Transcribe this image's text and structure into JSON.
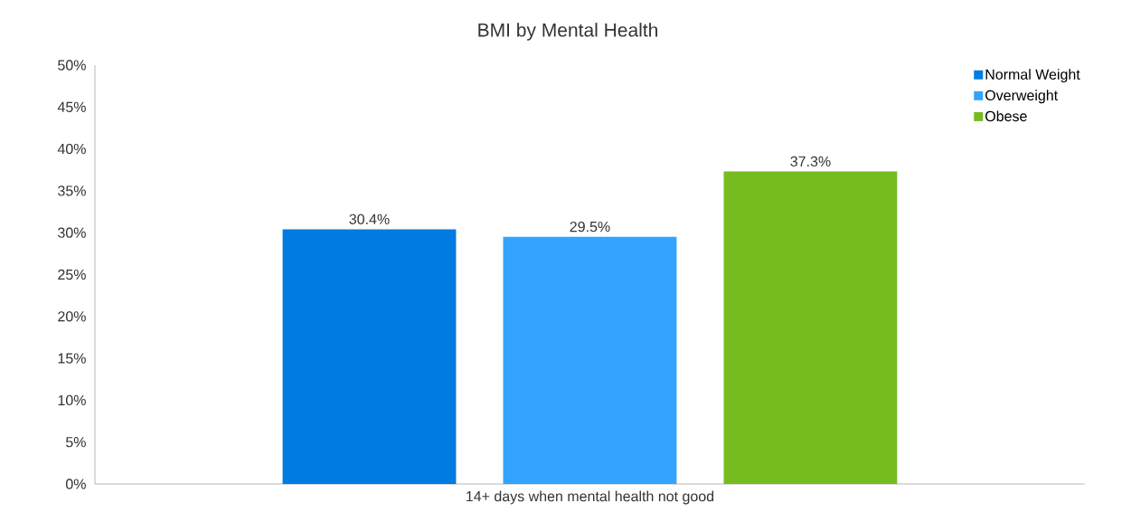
{
  "chart_data": {
    "type": "bar",
    "title": "BMI by Mental Health",
    "categories": [
      "14+ days when mental health not good"
    ],
    "series": [
      {
        "name": "Normal Weight",
        "color": "#007be2",
        "values": [
          30.4
        ],
        "value_labels": [
          "30.4%"
        ]
      },
      {
        "name": "Overweight",
        "color": "#33a3ff",
        "values": [
          29.5
        ],
        "value_labels": [
          "29.5%"
        ]
      },
      {
        "name": "Obese",
        "color": "#77bc1f",
        "values": [
          37.3
        ],
        "value_labels": [
          "37.3%"
        ]
      }
    ],
    "ylim": [
      0,
      50
    ],
    "yticks": [
      {
        "value": 0,
        "label": "0%"
      },
      {
        "value": 5,
        "label": "5%"
      },
      {
        "value": 10,
        "label": "10%"
      },
      {
        "value": 15,
        "label": "15%"
      },
      {
        "value": 20,
        "label": "20%"
      },
      {
        "value": 25,
        "label": "25%"
      },
      {
        "value": 30,
        "label": "30%"
      },
      {
        "value": 35,
        "label": "35%"
      },
      {
        "value": 40,
        "label": "40%"
      },
      {
        "value": 45,
        "label": "45%"
      },
      {
        "value": 50,
        "label": "50%"
      }
    ],
    "legend": "top right"
  }
}
